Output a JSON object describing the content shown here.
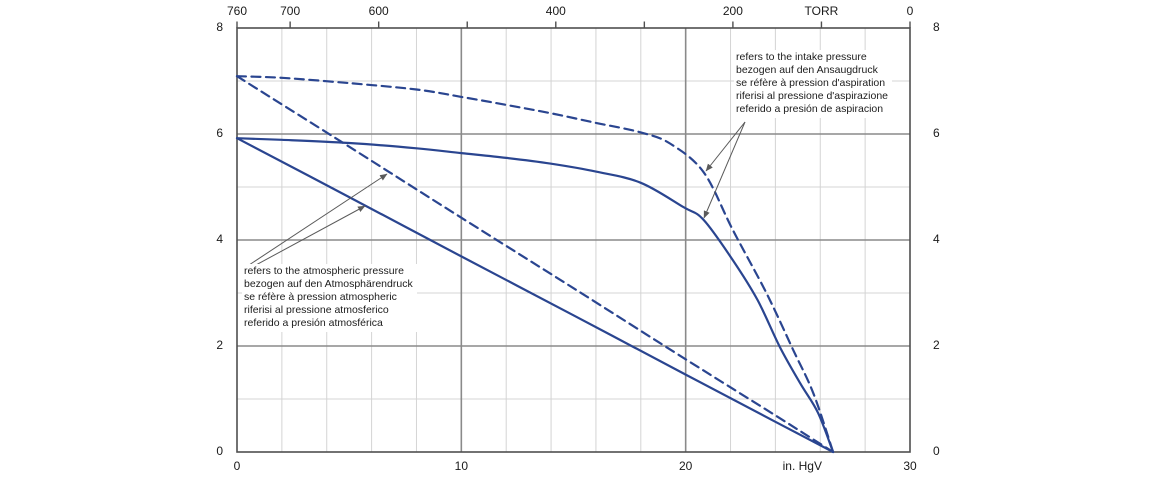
{
  "chart": {
    "colors": {
      "curve": "#2a4590",
      "grid_minor": "#d4d4d4",
      "grid_major": "#8a8a8a",
      "border": "#4f4f4f",
      "leader": "#5a5a5a",
      "text": "#1a1a1a"
    },
    "top_axis": {
      "ticks": [
        760,
        700,
        600,
        500,
        400,
        300,
        200,
        100,
        0
      ],
      "labels": [
        {
          "t": "760",
          "v": 760
        },
        {
          "t": "700",
          "v": 700
        },
        {
          "t": "600",
          "v": 600
        },
        {
          "t": "400",
          "v": 400
        },
        {
          "t": "200",
          "v": 200
        },
        {
          "t": "TORR",
          "v": 100
        },
        {
          "t": "0",
          "v": 0
        }
      ]
    },
    "bottom_axis": {
      "labels": [
        {
          "t": "0",
          "v": 0
        },
        {
          "t": "10",
          "v": 10
        },
        {
          "t": "20",
          "v": 20
        },
        {
          "t": "in. HgV",
          "v": 25.2
        },
        {
          "t": "30",
          "v": 30
        }
      ]
    },
    "left_axis": {
      "labels": [
        {
          "t": "0",
          "v": 0
        },
        {
          "t": "2",
          "v": 2
        },
        {
          "t": "4",
          "v": 4
        },
        {
          "t": "6",
          "v": 6
        },
        {
          "t": "8",
          "v": 8
        }
      ]
    },
    "right_axis": {
      "labels": [
        {
          "t": "0",
          "v": 0
        },
        {
          "t": "2",
          "v": 2
        },
        {
          "t": "4",
          "v": 4
        },
        {
          "t": "6",
          "v": 6
        },
        {
          "t": "8",
          "v": 8
        }
      ]
    }
  },
  "annotations": {
    "intake": {
      "lines": [
        "refers to the intake pressure",
        "bezogen auf den Ansaugdruck",
        "se réfère à pression d'aspiration",
        "riferisi al pressione d'aspirazione",
        "referido a presión de aspiracion"
      ]
    },
    "atmospheric": {
      "lines": [
        "refers to the atmospheric pressure",
        "bezogen auf den Atmosphärendruck",
        "se réfère à pression atmospheric",
        "riferisi al pressione atmosferico",
        "referido a presión atmosférica"
      ]
    }
  },
  "chart_data": {
    "type": "line",
    "title": "",
    "xlabel_bottom": "in. HgV",
    "xlabel_top": "TORR",
    "x_range_inhgv": [
      0,
      30
    ],
    "x_range_torr": [
      760,
      0
    ],
    "ylim": [
      0,
      8
    ],
    "grid": true,
    "x_minor_step": 2,
    "x_major_lines": [
      10,
      20
    ],
    "y_minor_step": 1,
    "y_major_lines": [
      2,
      4,
      6
    ],
    "ultimate_vacuum_inhgv": 26.57,
    "series": [
      {
        "id": "intake-dashed",
        "name": "capacity referred to intake pressure (dashed curve)",
        "style": "dashed",
        "points": [
          [
            0,
            7.09
          ],
          [
            2,
            7.06
          ],
          [
            5,
            6.96
          ],
          [
            8,
            6.84
          ],
          [
            10,
            6.7
          ],
          [
            12,
            6.55
          ],
          [
            14,
            6.39
          ],
          [
            16,
            6.21
          ],
          [
            18,
            6.03
          ],
          [
            19.3,
            5.82
          ],
          [
            20.8,
            5.28
          ],
          [
            22.1,
            4.19
          ],
          [
            23.6,
            3.0
          ],
          [
            24.8,
            1.92
          ],
          [
            25.7,
            1.1
          ],
          [
            26.57,
            0
          ]
        ]
      },
      {
        "id": "intake-solid",
        "name": "capacity referred to intake pressure (solid curve)",
        "style": "solid",
        "points": [
          [
            0,
            5.92
          ],
          [
            2,
            5.89
          ],
          [
            5,
            5.83
          ],
          [
            8,
            5.73
          ],
          [
            10,
            5.64
          ],
          [
            12,
            5.55
          ],
          [
            14,
            5.44
          ],
          [
            16,
            5.29
          ],
          [
            18,
            5.08
          ],
          [
            19.9,
            4.62
          ],
          [
            20.8,
            4.38
          ],
          [
            22.1,
            3.62
          ],
          [
            23.2,
            2.87
          ],
          [
            24.2,
            1.98
          ],
          [
            25.1,
            1.3
          ],
          [
            25.9,
            0.74
          ],
          [
            26.57,
            0
          ]
        ]
      },
      {
        "id": "atmospheric-dashed",
        "name": "capacity referred to atmospheric pressure (dashed line)",
        "style": "dashed",
        "points": [
          [
            0,
            7.09
          ],
          [
            5,
            5.76
          ],
          [
            10,
            4.42
          ],
          [
            15,
            3.09
          ],
          [
            20,
            1.75
          ],
          [
            24,
            0.69
          ],
          [
            26.57,
            0
          ]
        ]
      },
      {
        "id": "atmospheric-solid",
        "name": "capacity referred to atmospheric pressure (solid line)",
        "style": "solid",
        "points": [
          [
            0,
            5.92
          ],
          [
            5,
            4.81
          ],
          [
            10,
            3.69
          ],
          [
            15,
            2.58
          ],
          [
            20,
            1.46
          ],
          [
            24,
            0.57
          ],
          [
            26.57,
            0
          ]
        ]
      }
    ]
  }
}
